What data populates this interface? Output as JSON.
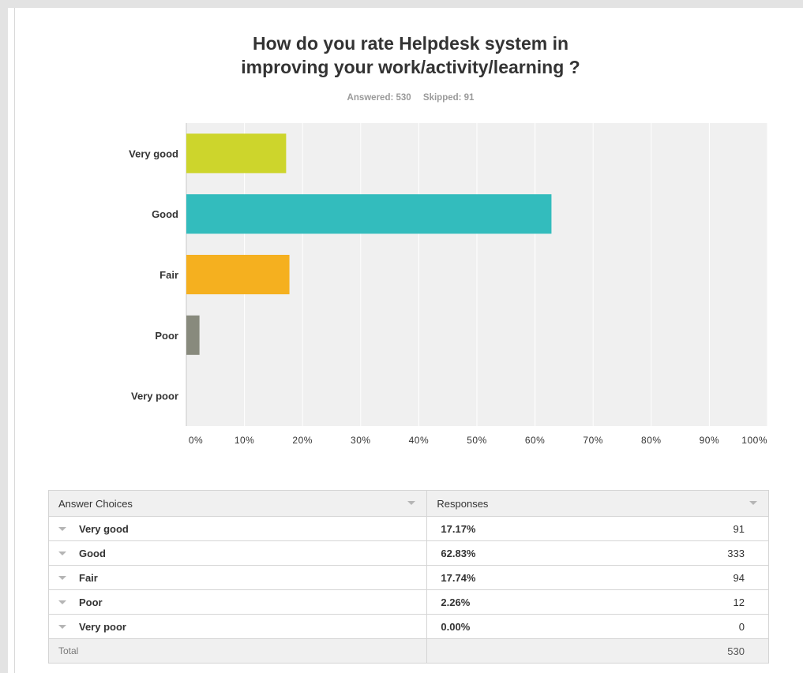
{
  "survey": {
    "title_line1": "How do you rate Helpdesk system in",
    "title_line2": "improving your work/activity/learning ?",
    "answered": "Answered: 530",
    "skipped": "Skipped: 91"
  },
  "chart_data": {
    "type": "bar",
    "orientation": "horizontal",
    "categories": [
      "Very good",
      "Good",
      "Fair",
      "Poor",
      "Very poor"
    ],
    "values": [
      17.17,
      62.83,
      17.74,
      2.26,
      0.0
    ],
    "colors": [
      "#cdd52c",
      "#33bcbd",
      "#f5b01f",
      "#888a7d",
      "#cccccc"
    ],
    "xlim": [
      0,
      100
    ],
    "xticks": [
      "0%",
      "10%",
      "20%",
      "30%",
      "40%",
      "50%",
      "60%",
      "70%",
      "80%",
      "90%",
      "100%"
    ],
    "grid": true,
    "background": "#f0f0f0"
  },
  "table": {
    "headers": {
      "choices": "Answer Choices",
      "responses": "Responses"
    },
    "rows": [
      {
        "choice": "Very good",
        "percent": "17.17%",
        "count": "91"
      },
      {
        "choice": "Good",
        "percent": "62.83%",
        "count": "333"
      },
      {
        "choice": "Fair",
        "percent": "17.74%",
        "count": "94"
      },
      {
        "choice": "Poor",
        "percent": "2.26%",
        "count": "12"
      },
      {
        "choice": "Very poor",
        "percent": "0.00%",
        "count": "0"
      }
    ],
    "total_label": "Total",
    "total_count": "530"
  }
}
